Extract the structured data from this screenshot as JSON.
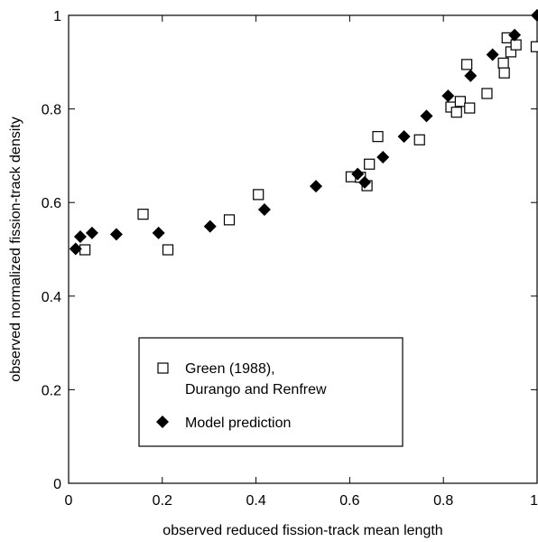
{
  "chart_data": {
    "type": "scatter",
    "xlabel": "observed reduced fission-track mean length",
    "ylabel": "observed normalized fission-track density",
    "xlim": [
      0,
      1
    ],
    "ylim": [
      0,
      1
    ],
    "x_ticks": [
      "0",
      "0.2",
      "0.4",
      "0.6",
      "0.8",
      "1"
    ],
    "y_ticks": [
      "0",
      "0.2",
      "0.4",
      "0.6",
      "0.8",
      "1"
    ],
    "grid": false,
    "legend": {
      "placement": "bottom-center",
      "entries": [
        {
          "line1": "Green (1988),",
          "line2": "Durango and Renfrew",
          "marker": "open-square"
        },
        {
          "line1": "Model prediction",
          "marker": "filled-diamond"
        }
      ]
    },
    "series": [
      {
        "name": "Green (1988), Durango and Renfrew",
        "marker": "open-square",
        "color": "#000000",
        "points": [
          [
            0.035,
            0.499
          ],
          [
            0.159,
            0.575
          ],
          [
            0.212,
            0.499
          ],
          [
            0.343,
            0.563
          ],
          [
            0.405,
            0.617
          ],
          [
            0.603,
            0.655
          ],
          [
            0.623,
            0.654
          ],
          [
            0.637,
            0.636
          ],
          [
            0.642,
            0.682
          ],
          [
            0.66,
            0.741
          ],
          [
            0.749,
            0.734
          ],
          [
            0.816,
            0.804
          ],
          [
            0.828,
            0.793
          ],
          [
            0.836,
            0.816
          ],
          [
            0.85,
            0.895
          ],
          [
            0.856,
            0.802
          ],
          [
            0.893,
            0.833
          ],
          [
            0.928,
            0.898
          ],
          [
            0.93,
            0.877
          ],
          [
            0.936,
            0.952
          ],
          [
            0.944,
            0.922
          ],
          [
            0.955,
            0.937
          ],
          [
            0.998,
            0.933
          ]
        ]
      },
      {
        "name": "Model prediction",
        "marker": "filled-diamond",
        "color": "#000000",
        "points": [
          [
            0.015,
            0.501
          ],
          [
            0.025,
            0.527
          ],
          [
            0.05,
            0.535
          ],
          [
            0.102,
            0.532
          ],
          [
            0.192,
            0.535
          ],
          [
            0.302,
            0.549
          ],
          [
            0.418,
            0.585
          ],
          [
            0.528,
            0.635
          ],
          [
            0.617,
            0.661
          ],
          [
            0.632,
            0.643
          ],
          [
            0.671,
            0.697
          ],
          [
            0.716,
            0.741
          ],
          [
            0.764,
            0.785
          ],
          [
            0.81,
            0.828
          ],
          [
            0.858,
            0.871
          ],
          [
            0.905,
            0.916
          ],
          [
            0.952,
            0.958
          ],
          [
            1.0,
            1.0
          ]
        ]
      }
    ]
  }
}
